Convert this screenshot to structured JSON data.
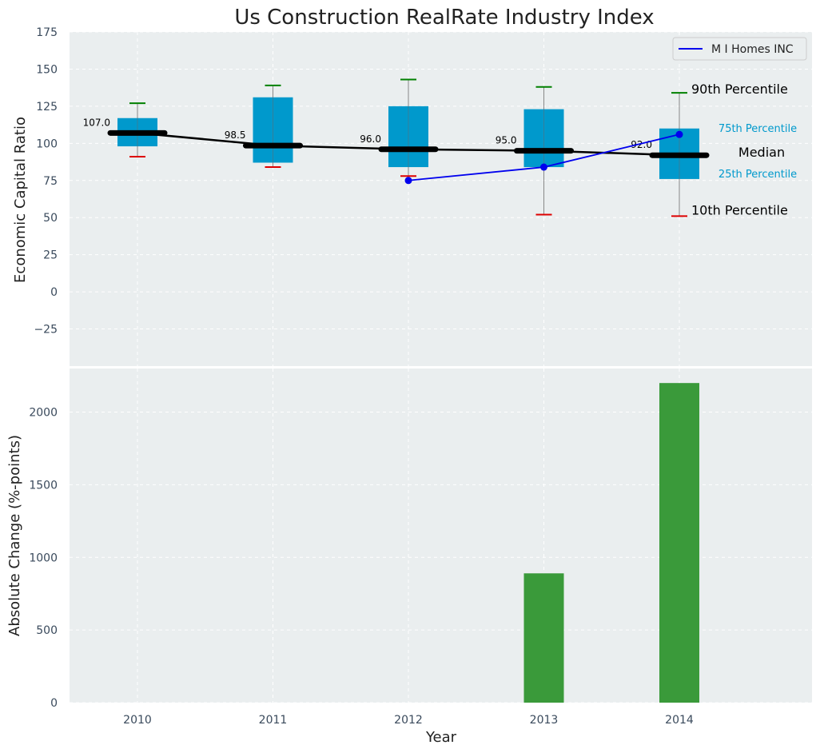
{
  "colors": {
    "panel_bg": "#eaeeef",
    "grid": "#ffffff",
    "box_fill": "#0099cc",
    "median": "#000000",
    "whisker_top": "#008000",
    "whisker_bottom": "#dd0000",
    "company_line": "#0000ee",
    "bar": "#3a9a3a"
  },
  "chart_data": [
    {
      "type": "box",
      "title": "Us Construction RealRate Industry Index",
      "xlabel": "",
      "ylabel": "Economic Capital Ratio",
      "ylim": [
        -50,
        175
      ],
      "yticks": [
        -25,
        0,
        25,
        50,
        75,
        100,
        125,
        150,
        175
      ],
      "categories": [
        "2010",
        "2011",
        "2012",
        "2013",
        "2014"
      ],
      "p10": [
        91,
        84,
        78,
        52,
        51
      ],
      "p25": [
        98,
        87,
        84,
        84,
        76
      ],
      "median": [
        107.0,
        98.5,
        96.0,
        95.0,
        92.0
      ],
      "p75": [
        117,
        131,
        125,
        123,
        110
      ],
      "p90": [
        127,
        139,
        143,
        138,
        134
      ],
      "median_labels": [
        "107.0",
        "98.5",
        "96.0",
        "95.0",
        "92.0"
      ],
      "series": [
        {
          "name": "M I Homes INC",
          "x": [
            "2012",
            "2013",
            "2014"
          ],
          "values": [
            75,
            84,
            106
          ]
        }
      ],
      "annotations": {
        "p90": "90th Percentile",
        "p75": "75th Percentile",
        "median": "Median",
        "p25": "25th Percentile",
        "p10": "10th Percentile"
      },
      "legend": "top-right",
      "grid": true
    },
    {
      "type": "bar",
      "xlabel": "Year",
      "ylabel": "Absolute Change (%-points)",
      "ylim": [
        0,
        2300
      ],
      "yticks": [
        0,
        500,
        1000,
        1500,
        2000
      ],
      "categories": [
        "2010",
        "2011",
        "2012",
        "2013",
        "2014"
      ],
      "values": [
        0,
        0,
        0,
        890,
        2200
      ],
      "grid": true
    }
  ]
}
